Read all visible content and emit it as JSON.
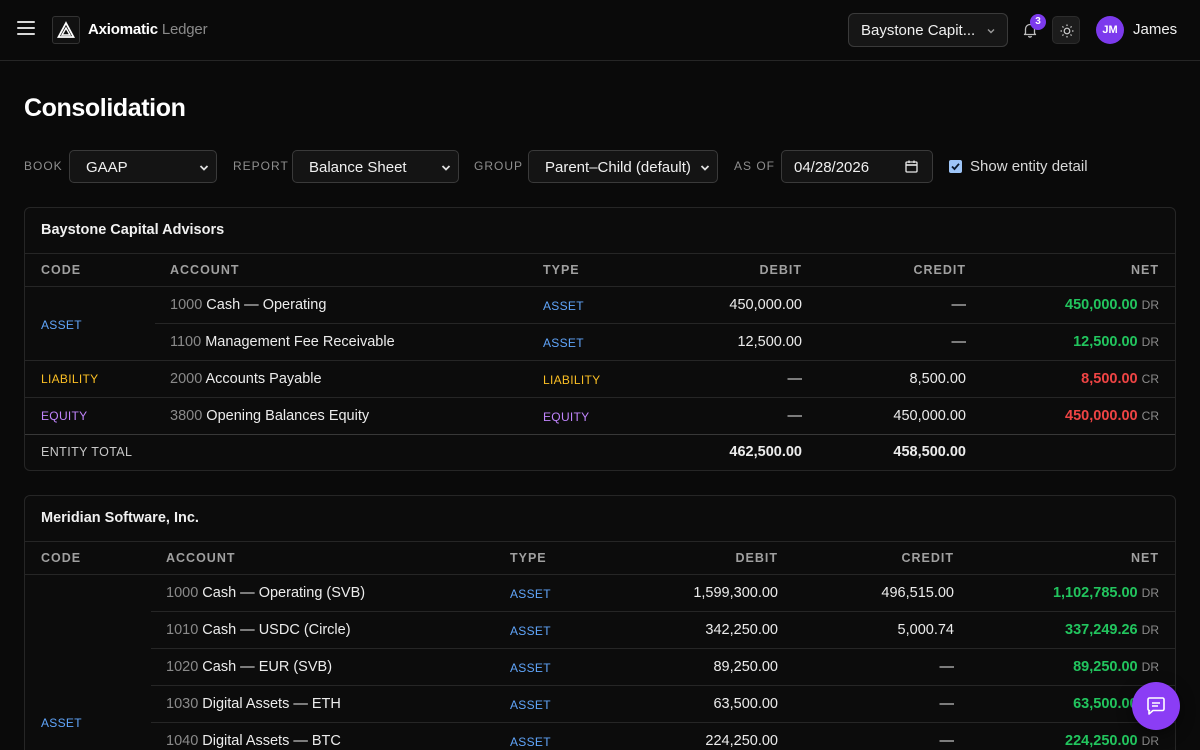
{
  "app": {
    "brand_main": "Axiomatic",
    "brand_sub": "Ledger"
  },
  "header": {
    "entity_selector": "Baystone Capit...",
    "notification_count": "3",
    "user_initials": "JM",
    "user_name": "James"
  },
  "page": {
    "title": "Consolidation"
  },
  "filters": {
    "book": {
      "label": "BOOK",
      "value": "GAAP"
    },
    "report": {
      "label": "REPORT",
      "value": "Balance Sheet"
    },
    "group": {
      "label": "GROUP",
      "value": "Parent–Child (default)"
    },
    "as_of": {
      "label": "AS OF",
      "value": "04/28/2026"
    },
    "show_entity_detail": {
      "label": "Show entity detail",
      "checked": true
    }
  },
  "columns": {
    "code": "CODE",
    "account": "ACCOUNT",
    "type": "TYPE",
    "debit": "DEBIT",
    "credit": "CREDIT",
    "net": "NET"
  },
  "colors": {
    "asset": "#60a5fa",
    "liability": "#fbbf24",
    "equity": "#c084fc",
    "net_dr": "#22c55e",
    "net_cr": "#ef4444",
    "accent": "#7c3aed"
  },
  "entities": [
    {
      "name": "Baystone Capital Advisors",
      "groups": [
        {
          "code": "ASSET"
        },
        {
          "code": "LIABILITY"
        },
        {
          "code": "EQUITY"
        }
      ],
      "rows": [
        {
          "num": "1000",
          "name": "Cash — Operating",
          "type": "ASSET",
          "debit": "450,000.00",
          "credit": "—",
          "net": "450,000.00",
          "net_side": "DR"
        },
        {
          "num": "1100",
          "name": "Management Fee Receivable",
          "type": "ASSET",
          "debit": "12,500.00",
          "credit": "—",
          "net": "12,500.00",
          "net_side": "DR"
        },
        {
          "num": "2000",
          "name": "Accounts Payable",
          "type": "LIABILITY",
          "debit": "—",
          "credit": "8,500.00",
          "net": "8,500.00",
          "net_side": "CR"
        },
        {
          "num": "3800",
          "name": "Opening Balances Equity",
          "type": "EQUITY",
          "debit": "—",
          "credit": "450,000.00",
          "net": "450,000.00",
          "net_side": "CR"
        }
      ],
      "total": {
        "label": "ENTITY TOTAL",
        "debit": "462,500.00",
        "credit": "458,500.00"
      }
    },
    {
      "name": "Meridian Software, Inc.",
      "groups": [
        {
          "code": "ASSET"
        }
      ],
      "rows": [
        {
          "num": "1000",
          "name": "Cash — Operating (SVB)",
          "type": "ASSET",
          "debit": "1,599,300.00",
          "credit": "496,515.00",
          "net": "1,102,785.00",
          "net_side": "DR"
        },
        {
          "num": "1010",
          "name": "Cash — USDC (Circle)",
          "type": "ASSET",
          "debit": "342,250.00",
          "credit": "5,000.74",
          "net": "337,249.26",
          "net_side": "DR"
        },
        {
          "num": "1020",
          "name": "Cash — EUR (SVB)",
          "type": "ASSET",
          "debit": "89,250.00",
          "credit": "—",
          "net": "89,250.00",
          "net_side": "DR"
        },
        {
          "num": "1030",
          "name": "Digital Assets — ETH",
          "type": "ASSET",
          "debit": "63,500.00",
          "credit": "—",
          "net": "63,500.00",
          "net_side": "DR"
        },
        {
          "num": "1040",
          "name": "Digital Assets — BTC",
          "type": "ASSET",
          "debit": "224,250.00",
          "credit": "—",
          "net": "224,250.00",
          "net_side": "DR"
        }
      ]
    }
  ]
}
